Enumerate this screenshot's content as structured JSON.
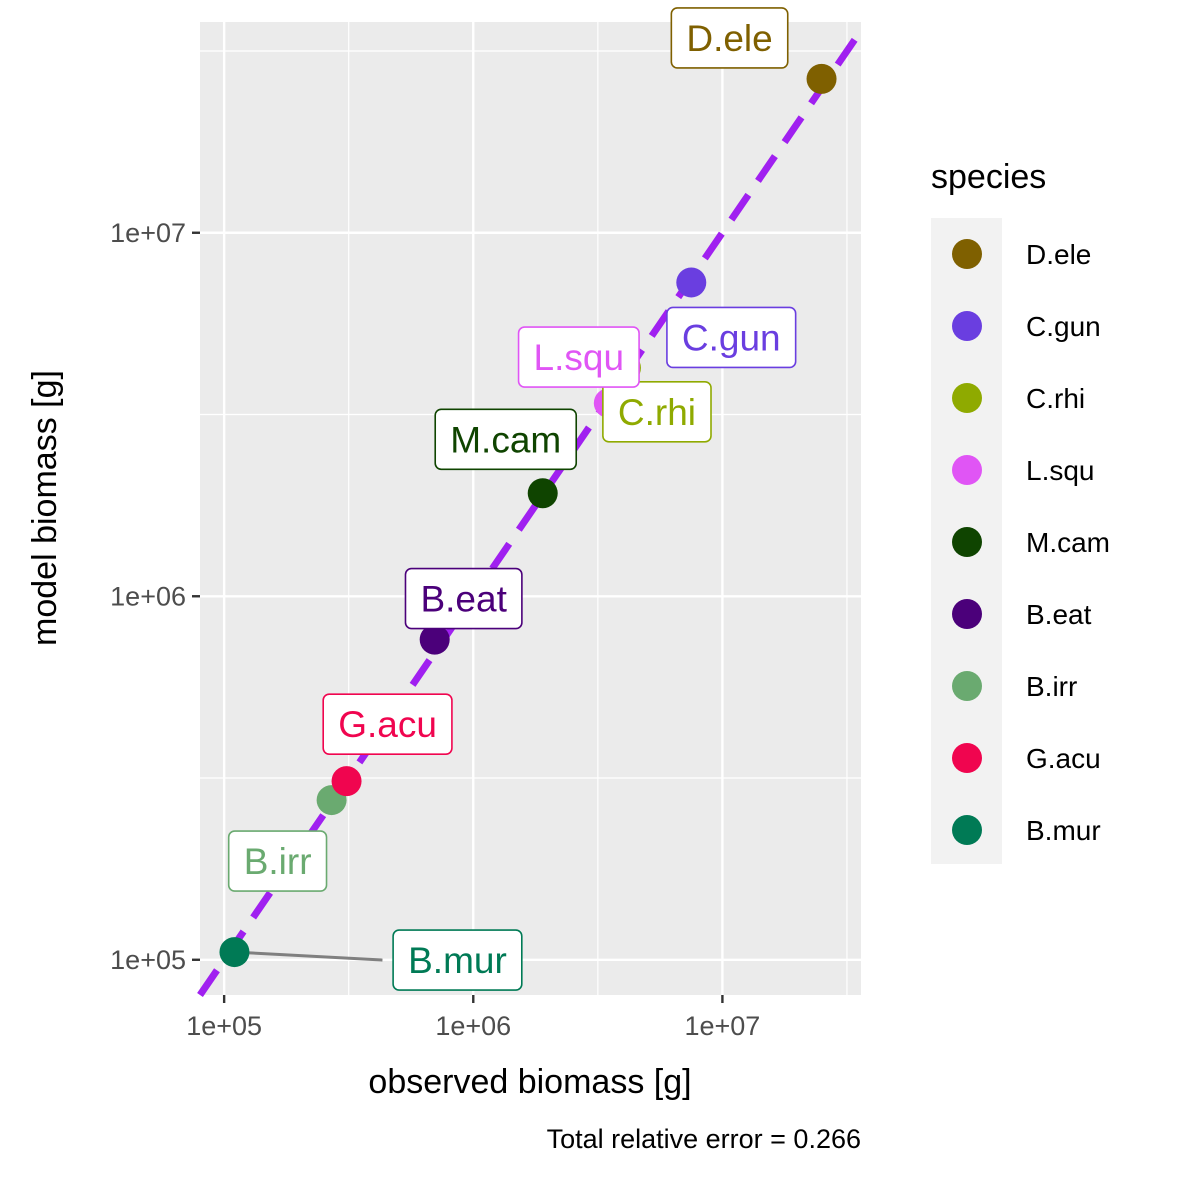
{
  "chart_data": {
    "type": "scatter",
    "xlabel": "observed biomass [g]",
    "ylabel": "model biomass [g]",
    "x_scale": "log10",
    "y_scale": "log10",
    "xlim": [
      80000,
      36000000
    ],
    "ylim": [
      80000,
      38000000
    ],
    "x_ticks": [
      "1e+05",
      "1e+06",
      "1e+07"
    ],
    "y_ticks": [
      "1e+05",
      "1e+06",
      "1e+07"
    ],
    "grid": true,
    "legend_title": "species",
    "legend_position": "right",
    "caption": "Total relative error = 0.266",
    "reference_line": {
      "style": "dashed",
      "color": "#a020f0",
      "slope": 1
    },
    "points": [
      {
        "species": "D.ele",
        "x": 25000000,
        "y": 26500000,
        "color": "#7f6000"
      },
      {
        "species": "C.gun",
        "x": 7500000,
        "y": 7300000,
        "color": "#6a3ee0"
      },
      {
        "species": "C.rhi",
        "x": 4100000,
        "y": 4250000,
        "color": "#8faa00"
      },
      {
        "species": "L.squ",
        "x": 3500000,
        "y": 3400000,
        "color": "#e055f5"
      },
      {
        "species": "M.cam",
        "x": 1900000,
        "y": 1920000,
        "color": "#0f4400"
      },
      {
        "species": "B.eat",
        "x": 700000,
        "y": 760000,
        "color": "#4b007a"
      },
      {
        "species": "B.irr",
        "x": 270000,
        "y": 275000,
        "color": "#6aaa70"
      },
      {
        "species": "G.acu",
        "x": 310000,
        "y": 310000,
        "color": "#f0054f"
      },
      {
        "species": "B.mur",
        "x": 110000,
        "y": 105000,
        "color": "#007a55"
      }
    ],
    "legend_order": [
      "D.ele",
      "C.gun",
      "C.rhi",
      "L.squ",
      "M.cam",
      "B.eat",
      "B.irr",
      "G.acu",
      "B.mur"
    ]
  }
}
